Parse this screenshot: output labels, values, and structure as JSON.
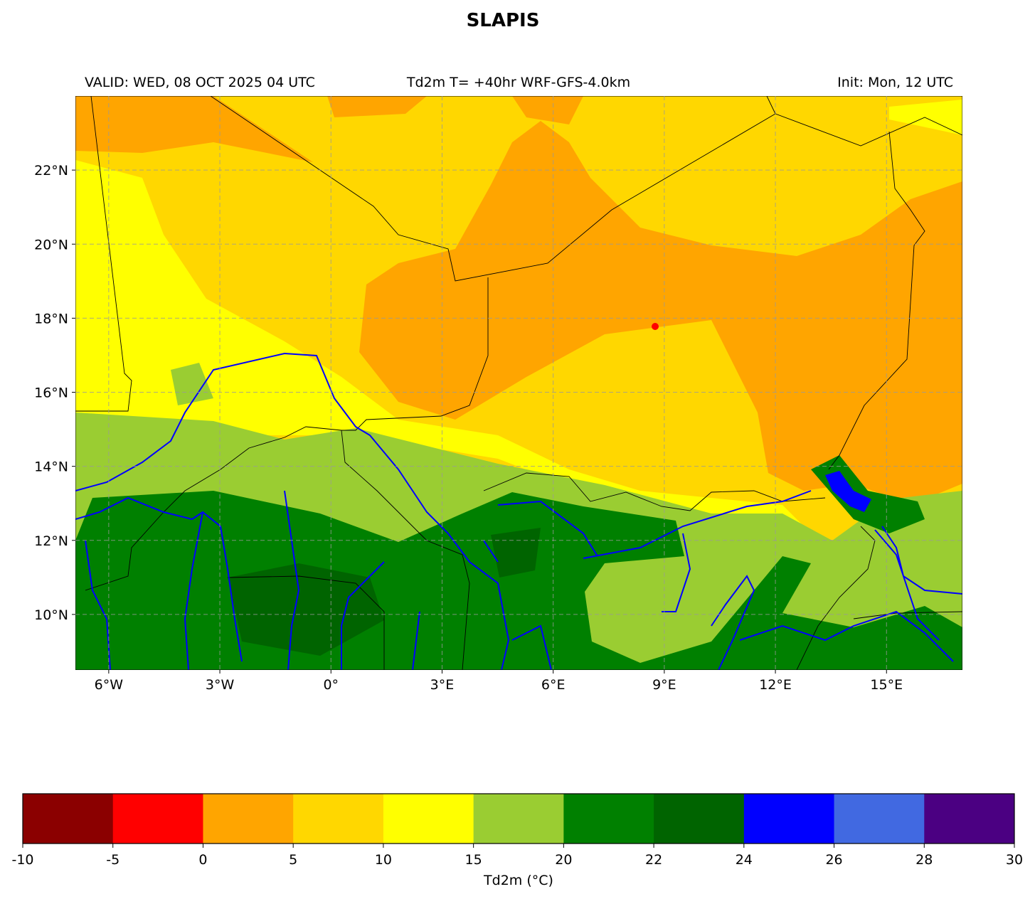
{
  "title": "SLAPIS",
  "valid": "VALID: WED, 08 OCT 2025 04 UTC",
  "subtitle": "Td2m T= +40hr WRF-GFS-4.0km",
  "init": "Init: Mon, 12 UTC",
  "map": {
    "xlim": [
      -6.9,
      17.05
    ],
    "ylim": [
      8.5,
      24
    ],
    "xticks": [
      {
        "value": -6,
        "label": "6°W"
      },
      {
        "value": -3,
        "label": "3°W"
      },
      {
        "value": 0,
        "label": "0°"
      },
      {
        "value": 3,
        "label": "3°E"
      },
      {
        "value": 6,
        "label": "6°E"
      },
      {
        "value": 9,
        "label": "9°E"
      },
      {
        "value": 12,
        "label": "12°E"
      },
      {
        "value": 15,
        "label": "15°E"
      }
    ],
    "yticks": [
      {
        "value": 10,
        "label": "10°N"
      },
      {
        "value": 12,
        "label": "12°N"
      },
      {
        "value": 14,
        "label": "14°N"
      },
      {
        "value": 16,
        "label": "16°N"
      },
      {
        "value": 18,
        "label": "18°N"
      },
      {
        "value": 20,
        "label": "20°N"
      },
      {
        "value": 22,
        "label": "22°N"
      }
    ],
    "grid": true
  },
  "colorbar": {
    "label": "Td2m (°C)",
    "bounds": [
      -10,
      -5,
      0,
      5,
      10,
      15,
      20,
      22,
      24,
      26,
      28,
      30
    ],
    "colors": [
      "#8b0000",
      "#ff0000",
      "#ffa500",
      "#ffd700",
      "#ffff00",
      "#9acd32",
      "#008000",
      "#006400",
      "#0000ff",
      "#4169e1",
      "#4b0082"
    ]
  }
}
